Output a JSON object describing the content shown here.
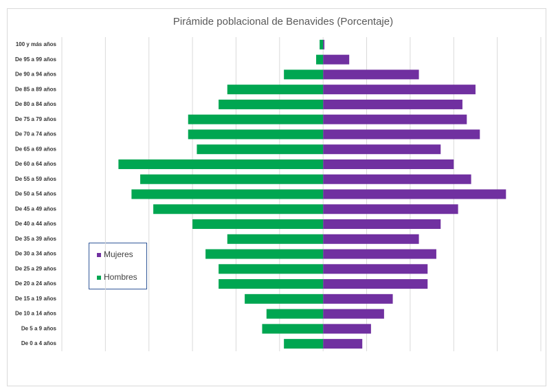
{
  "chart_data": {
    "type": "pyramid",
    "title": "Pirámide poblacional de Benavides (Porcentaje)",
    "categories": [
      "100 y más años",
      "De 95 a 99 años",
      "De 90 a 94 años",
      "De 85 a 89 años",
      "De 80 a 84 años",
      "De 75 a 79 años",
      "De 70 a 74 años",
      "De 65 a 69 años",
      "De 60 a 64 años",
      "De 55 a 59 años",
      "De 50 a 54 años",
      "De 45 a 49 años",
      "De 40 a 44 años",
      "De 35 a 39 años",
      "De 30 a 34 años",
      "De 25 a 29 años",
      "De 20 a 24 años",
      "De 15 a 19 años",
      "De 10 a 14 años",
      "De 5 a 9 años",
      "De 0 a 4 años"
    ],
    "series": [
      {
        "name": "Mujeres",
        "color": "#7030a0",
        "values": [
          0.03,
          0.6,
          2.2,
          3.5,
          3.2,
          3.3,
          3.6,
          2.7,
          3.0,
          3.4,
          4.2,
          3.1,
          2.7,
          2.2,
          2.6,
          2.4,
          2.4,
          1.6,
          1.4,
          1.1,
          0.9
        ]
      },
      {
        "name": "Hombres",
        "color": "#00a651",
        "values": [
          0.08,
          0.16,
          0.9,
          2.2,
          2.4,
          3.1,
          3.1,
          2.9,
          4.7,
          4.2,
          4.4,
          3.9,
          3.0,
          2.2,
          2.7,
          2.4,
          2.4,
          1.8,
          1.3,
          1.4,
          0.9
        ]
      }
    ],
    "xlim": [
      -6,
      5
    ],
    "xticks": [
      -6,
      -5,
      -4,
      -3,
      -2,
      -1,
      0,
      1,
      2,
      3,
      4,
      5
    ],
    "grid": true
  }
}
